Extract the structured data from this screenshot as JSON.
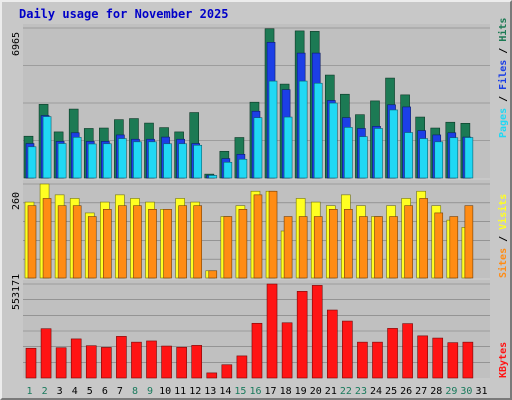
{
  "title": "Daily usage for November 2025",
  "colors": {
    "hits": "#1c7a54",
    "files": "#1c3fe6",
    "pages": "#20d8f4",
    "visits": "#ffff22",
    "sites": "#ff8c14",
    "kbytes": "#ff1414",
    "title": "#0000c8",
    "day_weekday": "#197a5c",
    "day_weekend": "#000000"
  },
  "chart_data": [
    {
      "type": "bar",
      "panel": "hits",
      "axis_label": "6965",
      "ymax": 6965,
      "legend": [
        "Pages",
        "Files",
        "Hits"
      ],
      "series": [
        {
          "name": "Hits",
          "values": [
            1940,
            3420,
            2140,
            3200,
            2300,
            2320,
            2710,
            2760,
            2550,
            2340,
            2140,
            3040,
            180,
            1240,
            1880,
            3520,
            6930,
            4360,
            6830,
            6810,
            4780,
            3890,
            2940,
            3580,
            4640,
            3860,
            2830,
            2320,
            2590,
            2540
          ]
        },
        {
          "name": "Files",
          "values": [
            1600,
            2900,
            1700,
            2100,
            1700,
            1700,
            2000,
            1800,
            1800,
            1900,
            1800,
            1600,
            130,
            900,
            1100,
            3100,
            6300,
            4100,
            5800,
            5800,
            3600,
            2800,
            2300,
            2400,
            3400,
            3300,
            2200,
            2000,
            2100,
            1900
          ]
        },
        {
          "name": "Pages",
          "values": [
            1450,
            2850,
            1600,
            1890,
            1580,
            1590,
            1830,
            1680,
            1680,
            1590,
            1590,
            1520,
            120,
            730,
            870,
            2800,
            4500,
            2830,
            4500,
            4400,
            3480,
            2350,
            1920,
            2300,
            3160,
            2110,
            1830,
            1680,
            1870,
            1880
          ]
        }
      ]
    },
    {
      "type": "bar",
      "panel": "visits",
      "axis_label": "260",
      "ymax": 260,
      "legend": [
        "Sites",
        "Visits"
      ],
      "series": [
        {
          "name": "Visits",
          "values": [
            210,
            260,
            230,
            220,
            180,
            210,
            230,
            220,
            210,
            190,
            220,
            210,
            20,
            170,
            200,
            240,
            240,
            130,
            220,
            210,
            200,
            230,
            200,
            170,
            200,
            220,
            240,
            200,
            160,
            140
          ]
        },
        {
          "name": "Sites",
          "values": [
            200,
            220,
            200,
            200,
            170,
            190,
            200,
            200,
            190,
            190,
            200,
            200,
            20,
            170,
            190,
            230,
            240,
            170,
            170,
            170,
            190,
            190,
            170,
            170,
            170,
            200,
            220,
            180,
            170,
            200
          ]
        }
      ]
    },
    {
      "type": "bar",
      "panel": "kbytes",
      "axis_label": "553171",
      "ymax": 553171,
      "legend": [
        "KBytes"
      ],
      "series": [
        {
          "name": "KBytes",
          "values": [
            175000,
            290000,
            178000,
            230000,
            190000,
            180000,
            245000,
            211000,
            218000,
            188000,
            181000,
            192000,
            30000,
            78000,
            130000,
            322000,
            553000,
            325000,
            510000,
            545000,
            400000,
            335000,
            211000,
            211000,
            292000,
            320000,
            248000,
            235000,
            208000,
            211000
          ]
        }
      ]
    }
  ],
  "days": [
    "1",
    "2",
    "3",
    "4",
    "5",
    "6",
    "7",
    "8",
    "9",
    "10",
    "11",
    "12",
    "13",
    "14",
    "15",
    "16",
    "17",
    "18",
    "19",
    "20",
    "21",
    "22",
    "23",
    "24",
    "25",
    "26",
    "27",
    "28",
    "29",
    "30",
    "31"
  ],
  "weekend_days": [
    "1",
    "2",
    "8",
    "9",
    "15",
    "16",
    "22",
    "23",
    "29",
    "30"
  ]
}
